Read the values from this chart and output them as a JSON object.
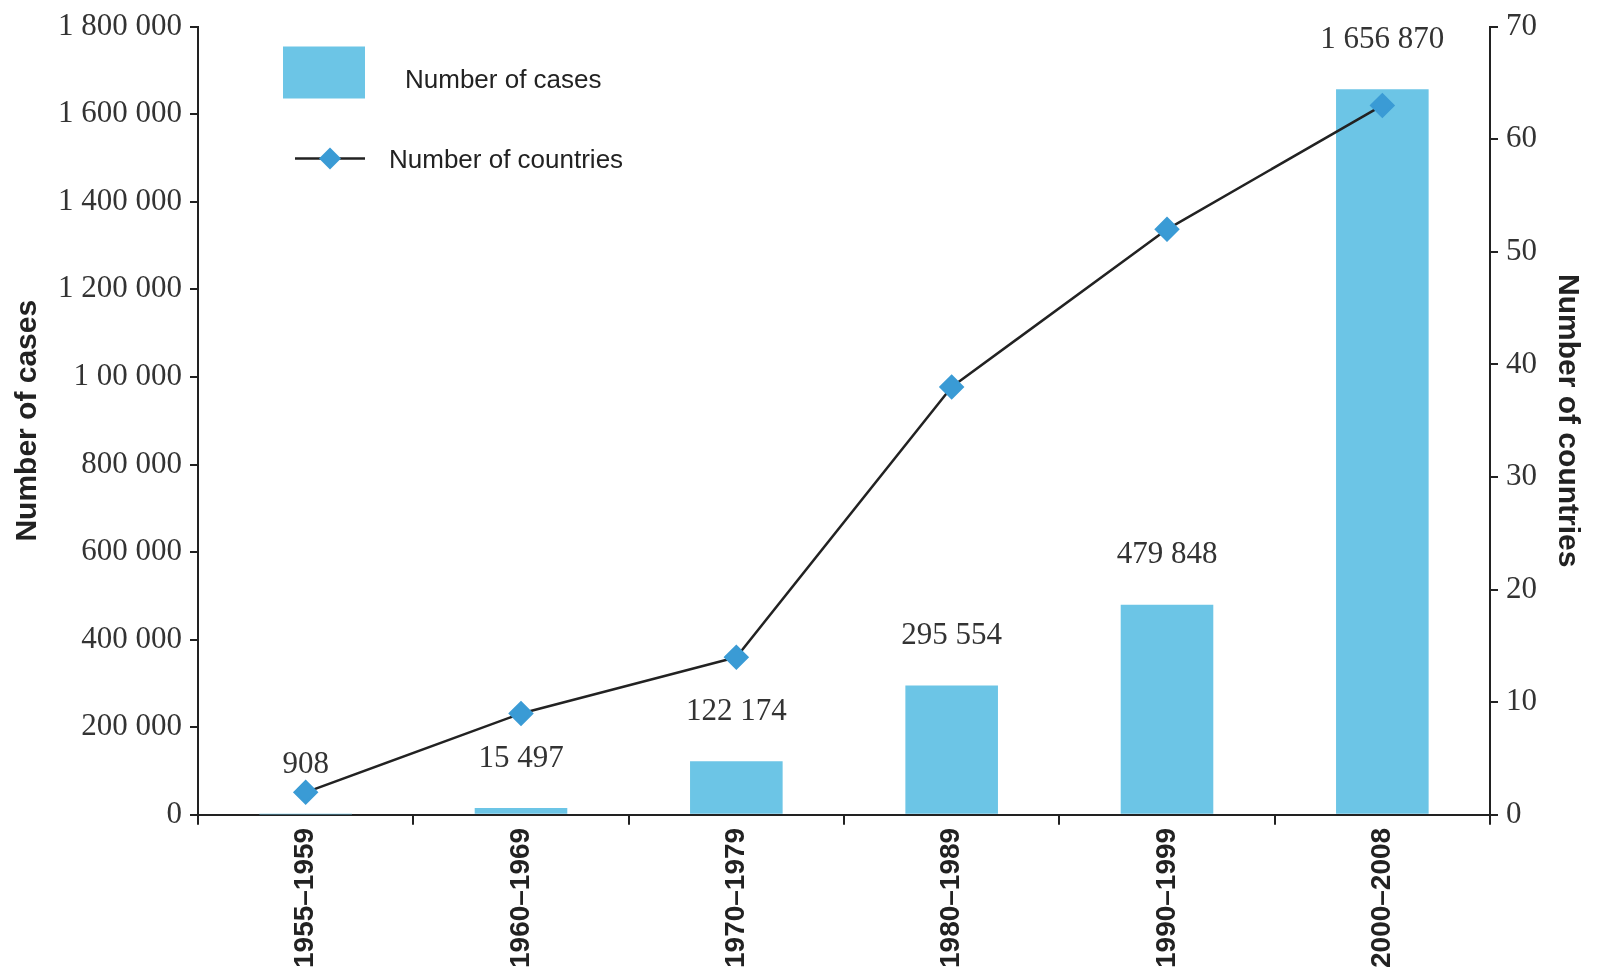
{
  "chart_data": {
    "type": "bar",
    "categories": [
      "1955–1959",
      "1960–1969",
      "1970–1979",
      "1980–1989",
      "1990–1999",
      "2000–2008"
    ],
    "ylabel": "Number of cases",
    "y2label": "Number of countries",
    "ylim": [
      0,
      1800000
    ],
    "yticks": [
      0,
      {
        "value": 200000,
        "label": "200 000"
      },
      {
        "value": 400000,
        "label": "400 000"
      },
      {
        "value": 600000,
        "label": "600 000"
      },
      {
        "value": 800000,
        "label": "800 000"
      },
      {
        "value": 1000000,
        "label": "1 00 000"
      },
      {
        "value": 1200000,
        "label": "1 200 000"
      },
      {
        "value": 1400000,
        "label": "1 400 000"
      },
      {
        "value": 1600000,
        "label": "1 600 000"
      },
      {
        "value": 1800000,
        "label": "1 800 000"
      }
    ],
    "y2lim": [
      0,
      70
    ],
    "y2ticks": [
      0,
      10,
      20,
      30,
      40,
      50,
      60,
      70
    ],
    "legend": "top left",
    "marker": "diamond",
    "series": [
      {
        "name": "Number of cases",
        "color": "#6cc5e6",
        "values": [
          908,
          15497,
          122174,
          295554,
          479848,
          1656870
        ],
        "value_labels": [
          "908",
          "15 497",
          "122 174",
          "295 554",
          "479 848",
          "1 656 870"
        ]
      },
      {
        "name": "Number of countries",
        "type": "line",
        "axis": "y2",
        "color": "#3a9bd5",
        "values": [
          2,
          9,
          14,
          38,
          52,
          63
        ]
      }
    ]
  }
}
